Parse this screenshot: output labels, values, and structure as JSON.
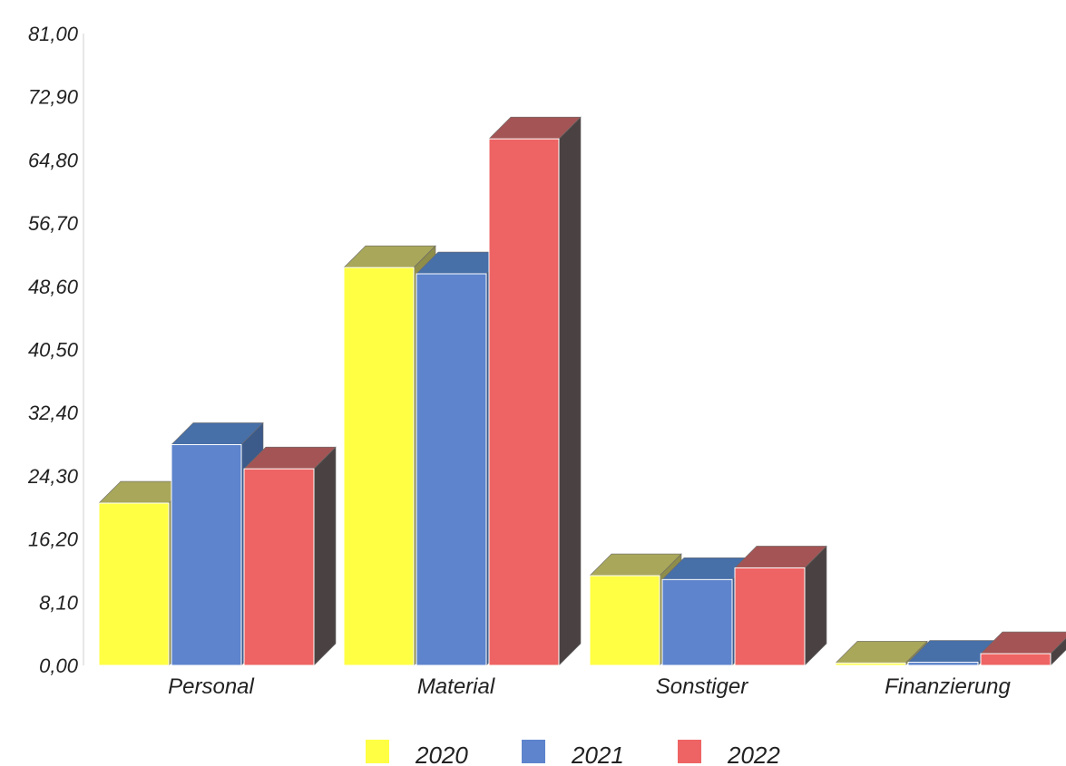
{
  "chart_data": {
    "type": "bar",
    "categories": [
      "Personal",
      "Material",
      "Sonstiger",
      "Finanzierung"
    ],
    "series": [
      {
        "name": "2020",
        "values": [
          20.8,
          51.0,
          11.5,
          0.3
        ],
        "color": "#ffff44",
        "top_color": "#a9a75a",
        "side_color": "#8f8d4a"
      },
      {
        "name": "2021",
        "values": [
          28.3,
          50.2,
          11.0,
          0.4
        ],
        "color": "#5d84cc",
        "top_color": "#476fa8",
        "side_color": "#3c5a8a"
      },
      {
        "name": "2022",
        "values": [
          25.2,
          67.5,
          12.5,
          1.5
        ],
        "color": "#ee6464",
        "top_color": "#a45454",
        "side_color": "#4a4242"
      }
    ],
    "y_ticks": [
      "0,00",
      "8,10",
      "16,20",
      "24,30",
      "32,40",
      "40,50",
      "48,60",
      "56,70",
      "64,80",
      "72,90",
      "81,00"
    ],
    "ylim": [
      0,
      81
    ],
    "title": "",
    "xlabel": "",
    "ylabel": "",
    "legend_position": "bottom-center",
    "grid": false,
    "style": "3d-bar"
  }
}
